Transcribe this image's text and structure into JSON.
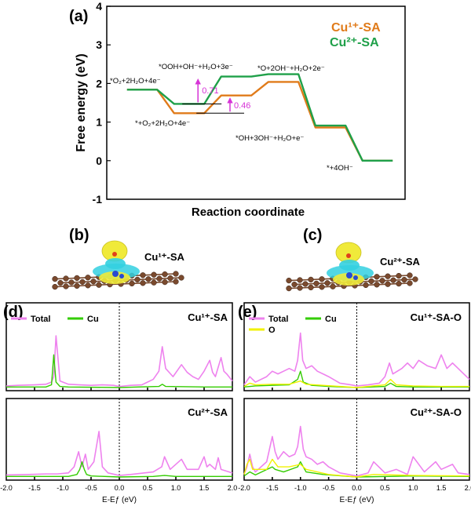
{
  "figure": {
    "panel_a": "(a)",
    "panel_b": "(b)",
    "panel_c": "(c)",
    "panel_d": "(d)",
    "panel_e": "(e)"
  },
  "colors": {
    "cu1": "#e07b1a",
    "cu2": "#1fa049",
    "arrow": "#d633d6",
    "total": "#ee82ee",
    "cu_dos": "#33cc00",
    "o_dos": "#f2f200",
    "carbon": "#7a4a2e",
    "iso_yellow": "#f0ea3a",
    "iso_cyan": "#33d0e0"
  },
  "structures": {
    "b_label": "Cu¹⁺-SA",
    "c_label": "Cu²⁺-SA"
  },
  "chart_data": [
    {
      "id": "a",
      "type": "line",
      "title": "",
      "xlabel": "Reaction coordinate",
      "ylabel": "Free energy (eV)",
      "ylim": [
        -1,
        4
      ],
      "yticks": [
        "-1",
        "0",
        "1",
        "2",
        "3",
        "4"
      ],
      "steps": 6,
      "series": [
        {
          "name": "Cu¹⁺-SA",
          "values": [
            1.84,
            1.23,
            1.69,
            2.04,
            0.86,
            0.0
          ]
        },
        {
          "name": "Cu²⁺-SA",
          "values": [
            1.84,
            1.47,
            2.18,
            2.24,
            0.91,
            0.0
          ]
        }
      ],
      "state_labels": [
        "*O₂+2H₂O+4e⁻",
        "*+O₂+2H₂O+4e⁻",
        "*OOH+OH⁻+H₂O+3e⁻",
        "*O+2OH⁻+H₂O+2e⁻",
        "*OH+3OH⁻+H₂O+e⁻",
        "*+4OH⁻"
      ],
      "annotations": [
        "0.71",
        "0.46"
      ],
      "legend": "top-right"
    },
    {
      "id": "d-top",
      "type": "line",
      "label": "Cu¹⁺-SA",
      "xlim": [
        -2,
        2
      ],
      "legend": [
        "Total",
        "Cu"
      ],
      "series": [
        {
          "name": "Total",
          "x": [
            -2.0,
            -1.8,
            -1.5,
            -1.3,
            -1.2,
            -1.16,
            -1.12,
            -1.05,
            -0.9,
            -0.7,
            -0.5,
            -0.3,
            -0.1,
            0.0,
            0.2,
            0.4,
            0.6,
            0.7,
            0.76,
            0.82,
            0.95,
            1.1,
            1.2,
            1.3,
            1.4,
            1.5,
            1.6,
            1.65,
            1.7,
            1.8,
            1.85,
            1.9,
            2.0
          ],
          "y": [
            0.03,
            0.04,
            0.05,
            0.06,
            0.1,
            0.2,
            0.95,
            0.12,
            0.06,
            0.05,
            0.04,
            0.05,
            0.04,
            0.02,
            0.04,
            0.05,
            0.15,
            0.3,
            0.75,
            0.35,
            0.2,
            0.42,
            0.28,
            0.2,
            0.15,
            0.3,
            0.5,
            0.28,
            0.2,
            0.55,
            0.3,
            0.25,
            0.12
          ]
        },
        {
          "name": "Cu",
          "x": [
            -2.0,
            -1.3,
            -1.2,
            -1.16,
            -1.12,
            -1.05,
            -0.9,
            0.0,
            0.7,
            0.76,
            0.82,
            1.5,
            2.0
          ],
          "y": [
            0.01,
            0.01,
            0.05,
            0.6,
            0.1,
            0.02,
            0.01,
            0.0,
            0.02,
            0.06,
            0.02,
            0.01,
            0.01
          ]
        }
      ]
    },
    {
      "id": "d-bottom",
      "type": "line",
      "label": "Cu²⁺-SA",
      "xlim": [
        -2,
        2
      ],
      "xlabel": "E-Eƒ (eV)",
      "xticks": [
        "-2.0",
        "-1.5",
        "-1.0",
        "-0.5",
        "0.0",
        "0.5",
        "1.0",
        "1.5",
        "2.0"
      ],
      "series": [
        {
          "name": "Total",
          "x": [
            -2.0,
            -1.6,
            -1.3,
            -1.1,
            -0.9,
            -0.8,
            -0.72,
            -0.66,
            -0.6,
            -0.55,
            -0.45,
            -0.36,
            -0.3,
            -0.2,
            0.0,
            0.2,
            0.6,
            0.75,
            0.8,
            0.9,
            1.1,
            1.2,
            1.4,
            1.5,
            1.55,
            1.6,
            1.7,
            1.75,
            1.8,
            2.0
          ],
          "y": [
            0.04,
            0.05,
            0.06,
            0.06,
            0.08,
            0.2,
            0.5,
            0.2,
            0.45,
            0.15,
            0.3,
            0.9,
            0.2,
            0.08,
            0.03,
            0.05,
            0.1,
            0.2,
            0.4,
            0.15,
            0.35,
            0.15,
            0.15,
            0.4,
            0.2,
            0.25,
            0.15,
            0.38,
            0.15,
            0.08
          ]
        },
        {
          "name": "Cu",
          "x": [
            -2.0,
            -0.9,
            -0.75,
            -0.7,
            -0.66,
            -0.62,
            -0.58,
            -0.5,
            0.0,
            0.6,
            0.8,
            1.0,
            2.0
          ],
          "y": [
            0.01,
            0.01,
            0.05,
            0.15,
            0.3,
            0.15,
            0.05,
            0.02,
            0.0,
            0.01,
            0.03,
            0.01,
            0.01
          ]
        }
      ]
    },
    {
      "id": "e-top",
      "type": "line",
      "label": "Cu¹⁺-SA-O",
      "xlim": [
        -2,
        2
      ],
      "legend": [
        "Total",
        "Cu",
        "O"
      ],
      "series": [
        {
          "name": "Total",
          "x": [
            -2.0,
            -1.9,
            -1.8,
            -1.6,
            -1.5,
            -1.4,
            -1.3,
            -1.2,
            -1.1,
            -1.05,
            -1.0,
            -0.96,
            -0.9,
            -0.8,
            -0.7,
            -0.6,
            -0.5,
            -0.3,
            -0.1,
            0.0,
            0.2,
            0.4,
            0.5,
            0.58,
            0.64,
            0.72,
            0.8,
            0.9,
            1.0,
            1.1,
            1.25,
            1.4,
            1.5,
            1.6,
            1.7,
            1.8,
            1.9,
            2.0
          ],
          "y": [
            0.05,
            0.2,
            0.1,
            0.2,
            0.3,
            0.25,
            0.3,
            0.35,
            0.3,
            0.5,
            1.0,
            0.5,
            0.35,
            0.4,
            0.3,
            0.25,
            0.2,
            0.08,
            0.05,
            0.03,
            0.05,
            0.08,
            0.2,
            0.45,
            0.25,
            0.3,
            0.35,
            0.45,
            0.35,
            0.5,
            0.4,
            0.35,
            0.6,
            0.35,
            0.45,
            0.35,
            0.25,
            0.15
          ]
        },
        {
          "name": "Cu",
          "x": [
            -2.0,
            -1.8,
            -1.5,
            -1.2,
            -1.05,
            -1.0,
            -0.95,
            -0.8,
            -0.5,
            0.0,
            0.5,
            0.6,
            0.7,
            1.0,
            2.0
          ],
          "y": [
            0.01,
            0.03,
            0.04,
            0.05,
            0.15,
            0.3,
            0.1,
            0.04,
            0.02,
            0.0,
            0.02,
            0.08,
            0.02,
            0.01,
            0.01
          ]
        },
        {
          "name": "O",
          "x": [
            -2.0,
            -1.9,
            -1.8,
            -1.5,
            -1.2,
            -1.0,
            -0.9,
            -0.6,
            -0.3,
            0.0,
            0.2,
            0.5,
            0.6,
            0.7,
            1.0,
            1.5,
            2.0
          ],
          "y": [
            0.02,
            0.08,
            0.05,
            0.06,
            0.06,
            0.12,
            0.06,
            0.04,
            0.02,
            0.0,
            0.02,
            0.05,
            0.15,
            0.05,
            0.03,
            0.02,
            0.02
          ]
        }
      ]
    },
    {
      "id": "e-bottom",
      "type": "line",
      "label": "Cu²⁺-SA-O",
      "xlim": [
        -2,
        2
      ],
      "xlabel": "E-Eƒ (eV)",
      "xticks": [
        "-2.0",
        "-1.5",
        "-1.0",
        "-0.5",
        "0.0",
        "0.5",
        "1.0",
        "1.5",
        "2.0"
      ],
      "series": [
        {
          "name": "Total",
          "x": [
            -2.0,
            -1.95,
            -1.9,
            -1.85,
            -1.8,
            -1.6,
            -1.55,
            -1.5,
            -1.45,
            -1.4,
            -1.3,
            -1.2,
            -1.1,
            -1.05,
            -1.0,
            -0.95,
            -0.9,
            -0.8,
            -0.7,
            -0.6,
            -0.5,
            -0.3,
            -0.1,
            0.0,
            0.2,
            0.3,
            0.5,
            0.7,
            0.9,
            1.0,
            1.2,
            1.4,
            1.5,
            1.7,
            1.8,
            2.0
          ],
          "y": [
            0.05,
            0.2,
            0.45,
            0.2,
            0.1,
            0.3,
            0.55,
            0.8,
            0.5,
            0.35,
            0.5,
            0.4,
            0.45,
            0.6,
            1.0,
            0.55,
            0.4,
            0.35,
            0.25,
            0.3,
            0.2,
            0.08,
            0.04,
            0.02,
            0.08,
            0.3,
            0.08,
            0.15,
            0.05,
            0.4,
            0.1,
            0.3,
            0.15,
            0.25,
            0.08,
            0.05
          ]
        },
        {
          "name": "Cu",
          "x": [
            -2.0,
            -1.9,
            -1.8,
            -1.5,
            -1.45,
            -1.3,
            -1.05,
            -1.0,
            -0.9,
            -0.6,
            0.0,
            1.0,
            2.0
          ],
          "y": [
            0.02,
            0.1,
            0.04,
            0.2,
            0.15,
            0.1,
            0.2,
            0.3,
            0.1,
            0.05,
            0.0,
            0.02,
            0.01
          ]
        },
        {
          "name": "O",
          "x": [
            -2.0,
            -1.95,
            -1.9,
            -1.85,
            -1.6,
            -1.5,
            -1.4,
            -1.2,
            -1.0,
            -0.9,
            -0.5,
            0.0,
            0.3,
            1.0,
            2.0
          ],
          "y": [
            0.05,
            0.25,
            0.35,
            0.15,
            0.15,
            0.35,
            0.2,
            0.2,
            0.25,
            0.15,
            0.05,
            0.0,
            0.05,
            0.03,
            0.02
          ]
        }
      ]
    }
  ]
}
